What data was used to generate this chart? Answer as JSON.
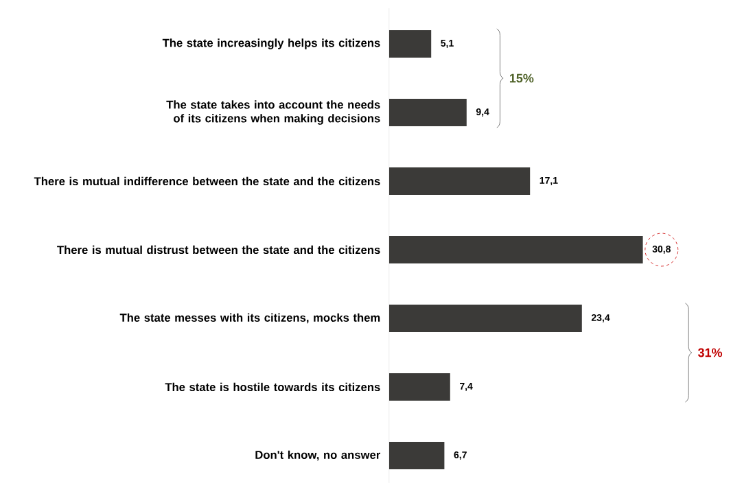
{
  "chart_data": {
    "type": "bar",
    "orientation": "horizontal",
    "categories": [
      "The state increasingly helps its citizens",
      "The state takes into account the needs of its citizens when making decisions",
      "There is mutual indifference between the state and the citizens",
      "There is mutual distrust between the state and the citizens",
      "The state messes with its citizens, mocks them",
      "The state is hostile towards its citizens",
      "Don't know, no answer"
    ],
    "values": [
      5.1,
      9.4,
      17.1,
      30.8,
      23.4,
      7.4,
      6.7
    ],
    "value_labels": [
      "5,1",
      "9,4",
      "17,1",
      "30,8",
      "23,4",
      "7,4",
      "6,7"
    ],
    "color": "#3b3a38",
    "tick_labels": "y",
    "annotations": [
      "15%",
      "31%"
    ]
  }
}
